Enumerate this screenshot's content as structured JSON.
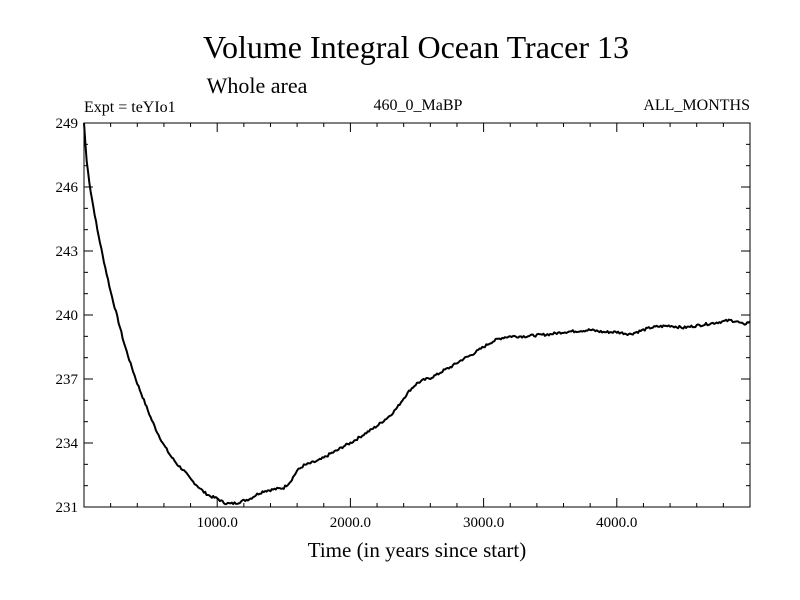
{
  "chart_data": {
    "type": "line",
    "title": "Volume Integral Ocean Tracer 13",
    "subtitle": "Whole area",
    "experiment": "Expt = teYIo1",
    "period": "460_0_MaBP",
    "months": "ALL_MONTHS",
    "xlabel": "Time (in years since start)",
    "ylabel": "",
    "xlim": [
      0,
      5000
    ],
    "ylim": [
      231,
      249
    ],
    "xticks": [
      1000,
      2000,
      3000,
      4000
    ],
    "xtick_labels": [
      "1000.0",
      "2000.0",
      "3000.0",
      "4000.0"
    ],
    "yticks": [
      231,
      234,
      237,
      240,
      243,
      246,
      249
    ],
    "ytick_labels": [
      "231",
      "234",
      "237",
      "240",
      "243",
      "246",
      "249"
    ],
    "series": [
      {
        "name": "Ocean Tracer 13",
        "color": "#000000",
        "x": [
          0,
          20,
          50,
          100,
          150,
          200,
          250,
          300,
          350,
          400,
          450,
          500,
          550,
          600,
          650,
          700,
          750,
          800,
          850,
          900,
          950,
          1000,
          1050,
          1100,
          1150,
          1200,
          1250,
          1300,
          1350,
          1400,
          1450,
          1500,
          1550,
          1600,
          1650,
          1700,
          1750,
          1800,
          1850,
          1900,
          1950,
          2000,
          2100,
          2200,
          2300,
          2350,
          2400,
          2450,
          2500,
          2550,
          2600,
          2650,
          2700,
          2750,
          2800,
          2850,
          2900,
          2950,
          3000,
          3050,
          3100,
          3150,
          3200,
          3250,
          3300,
          3400,
          3500,
          3600,
          3700,
          3800,
          3900,
          4000,
          4100,
          4200,
          4250,
          4300,
          4400,
          4500,
          4600,
          4700,
          4800,
          4850,
          4900,
          4950,
          5000
        ],
        "y": [
          249,
          247.2,
          245.8,
          244.0,
          242.5,
          241.1,
          239.9,
          238.7,
          237.7,
          236.8,
          236.0,
          235.2,
          234.5,
          233.9,
          233.4,
          233.0,
          232.7,
          232.3,
          232.0,
          231.7,
          231.5,
          231.4,
          231.2,
          231.15,
          231.2,
          231.3,
          231.4,
          231.6,
          231.75,
          231.8,
          231.85,
          231.9,
          232.2,
          232.7,
          232.95,
          233.05,
          233.15,
          233.3,
          233.5,
          233.65,
          233.85,
          234.0,
          234.4,
          234.8,
          235.3,
          235.65,
          236.1,
          236.5,
          236.8,
          236.95,
          237.05,
          237.2,
          237.4,
          237.55,
          237.75,
          237.95,
          238.1,
          238.3,
          238.5,
          238.7,
          238.85,
          238.95,
          239.0,
          239.0,
          239.0,
          239.05,
          239.1,
          239.2,
          239.25,
          239.3,
          239.2,
          239.2,
          239.1,
          239.3,
          239.4,
          239.45,
          239.5,
          239.4,
          239.5,
          239.6,
          239.7,
          239.75,
          239.7,
          239.55,
          239.7
        ]
      }
    ]
  }
}
